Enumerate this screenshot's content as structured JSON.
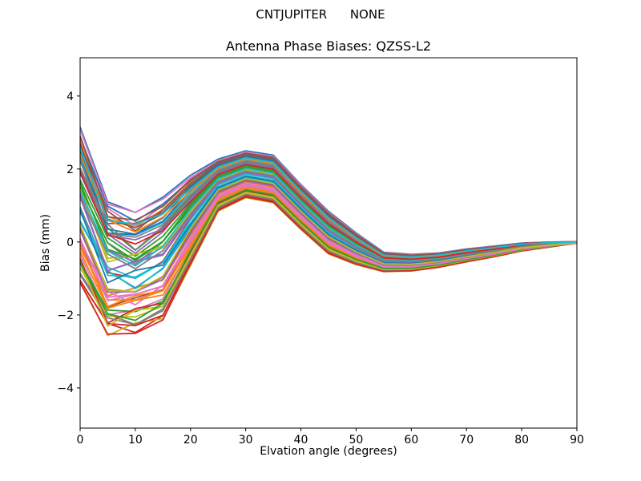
{
  "chart_data": {
    "type": "line",
    "suptitle": "CNTJUPITER      NONE",
    "title": "Antenna Phase Biases: QZSS-L2",
    "xlabel": "Elvation angle (degrees)",
    "ylabel": "Bias (mm)",
    "xlim": [
      0,
      90
    ],
    "ylim": [
      -5.1,
      5.05
    ],
    "xticks": [
      0,
      10,
      20,
      30,
      40,
      50,
      60,
      70,
      80,
      90
    ],
    "yticks": [
      -4,
      -2,
      0,
      2,
      4
    ],
    "grid": false,
    "legend": "none",
    "series_count": 60,
    "x": [
      0,
      5,
      10,
      15,
      20,
      25,
      30,
      35,
      40,
      45,
      50,
      55,
      60,
      65,
      70,
      75,
      80,
      85,
      90
    ],
    "band_center": [
      0.95,
      -0.75,
      -0.87,
      -0.5,
      0.58,
      1.55,
      1.85,
      1.72,
      0.95,
      0.25,
      -0.19,
      -0.55,
      -0.57,
      -0.5,
      -0.37,
      -0.26,
      -0.14,
      -0.07,
      -0.01
    ],
    "band_halfwidth": [
      2.15,
      1.8,
      1.58,
      1.68,
      1.25,
      0.72,
      0.65,
      0.66,
      0.62,
      0.59,
      0.44,
      0.27,
      0.23,
      0.2,
      0.18,
      0.15,
      0.11,
      0.07,
      0.02
    ],
    "series_encoding": "each series = [offset o, jitter a at 5deg, jitter b at 10deg]; value[k] = band_center[k] + o*band_halfwidth[k] (+ b*0.5 at 0deg, + a at 5deg, + b at 10deg, + 0.3*(a+b) at 15deg)",
    "series": [
      [
        1.0,
        0.05,
        0.1
      ],
      [
        -0.32,
        -0.15,
        0.12
      ],
      [
        0.52,
        0.2,
        -0.18
      ],
      [
        -0.88,
        0.1,
        -0.22
      ],
      [
        0.12,
        -0.25,
        0.15
      ],
      [
        0.72,
        0.08,
        0.12
      ],
      [
        -0.58,
        -0.2,
        -0.08
      ],
      [
        0.32,
        0.15,
        -0.25
      ],
      [
        -0.98,
        -0.05,
        0.2
      ],
      [
        0.62,
        -0.12,
        0.08
      ],
      [
        -0.15,
        0.22,
        -0.15
      ],
      [
        0.85,
        -0.08,
        -0.05
      ],
      [
        -0.72,
        0.18,
        0.1
      ],
      [
        0.05,
        -0.18,
        -0.2
      ],
      [
        0.45,
        0.12,
        0.22
      ],
      [
        -0.45,
        -0.22,
        0.05
      ],
      [
        0.92,
        0.02,
        -0.15
      ],
      [
        -0.82,
        0.25,
        -0.1
      ],
      [
        0.22,
        -0.1,
        0.18
      ],
      [
        -0.05,
        0.15,
        -0.05
      ],
      [
        0.67,
        -0.22,
        0.02
      ],
      [
        -0.62,
        0.05,
        0.25
      ],
      [
        0.38,
        0.18,
        -0.12
      ],
      [
        -0.92,
        -0.12,
        -0.18
      ],
      [
        0.15,
        0.25,
        0.08
      ],
      [
        0.78,
        -0.15,
        0.15
      ],
      [
        -0.38,
        0.08,
        -0.25
      ],
      [
        0.57,
        -0.05,
        0.1
      ],
      [
        -0.78,
        0.12,
        0.05
      ],
      [
        0.02,
        -0.2,
        -0.12
      ],
      [
        0.88,
        0.15,
        0.05
      ],
      [
        -0.52,
        -0.08,
        0.22
      ],
      [
        0.28,
        0.22,
        -0.08
      ],
      [
        -0.68,
        -0.25,
        0.12
      ],
      [
        0.48,
        0.1,
        -0.2
      ],
      [
        -0.22,
        -0.15,
        -0.15
      ],
      [
        0.95,
        0.08,
        0.18
      ],
      [
        -0.85,
        0.2,
        -0.05
      ],
      [
        0.18,
        -0.12,
        0.25
      ],
      [
        -0.12,
        0.18,
        -0.22
      ],
      [
        0.75,
        -0.25,
        -0.1
      ],
      [
        -0.55,
        0.15,
        0.15
      ],
      [
        0.35,
        -0.08,
        -0.15
      ],
      [
        -0.95,
        0.22,
        0.08
      ],
      [
        0.08,
        -0.18,
        0.2
      ],
      [
        0.82,
        0.12,
        -0.12
      ],
      [
        -0.42,
        -0.1,
        0.1
      ],
      [
        0.55,
        0.25,
        -0.22
      ],
      [
        -0.75,
        -0.2,
        0.18
      ],
      [
        0.25,
        0.05,
        -0.18
      ],
      [
        -0.08,
        -0.22,
        0.22
      ],
      [
        0.65,
        0.18,
        0.12
      ],
      [
        -0.65,
        -0.05,
        -0.25
      ],
      [
        0.42,
        0.2,
        0.15
      ],
      [
        -0.28,
        -0.12,
        -0.05
      ],
      [
        0.9,
        -0.18,
        0.05
      ],
      [
        -0.48,
        0.1,
        0.2
      ],
      [
        0.15,
        0.15,
        -0.1
      ],
      [
        -0.18,
        -0.25,
        -0.2
      ],
      [
        0.7,
        0.08,
        0.25
      ]
    ],
    "palette": [
      "#1f77b4",
      "#ff7f0e",
      "#2ca02c",
      "#d62728",
      "#9467bd",
      "#8c564b",
      "#e377c2",
      "#7f7f7f",
      "#bcbd22",
      "#17becf"
    ],
    "axis_color": "#000000",
    "background_color": "#ffffff"
  }
}
